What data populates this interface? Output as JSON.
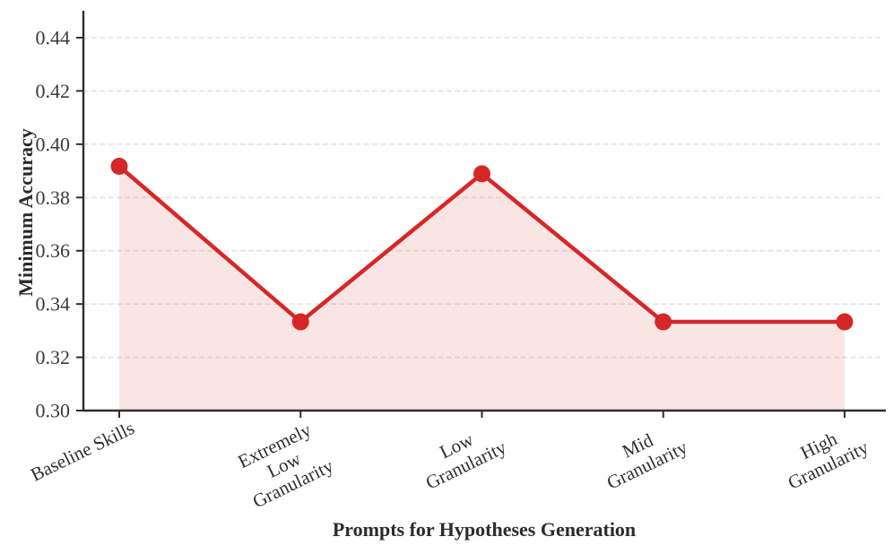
{
  "chart_data": {
    "type": "line",
    "title": "",
    "xlabel": "Prompts for Hypotheses Generation",
    "ylabel": "Minimum Accuracy",
    "categories": [
      "Baseline Skills",
      "Extremely\nLow\nGranularity",
      "Low\nGranularity",
      "Mid\nGranularity",
      "High\nGranularity"
    ],
    "values": [
      0.3917,
      0.3333,
      0.3889,
      0.3333,
      0.3333
    ],
    "ylim": [
      0.3,
      0.45
    ],
    "yticks": [
      0.3,
      0.32,
      0.34,
      0.36,
      0.38,
      0.4,
      0.42,
      0.44
    ],
    "grid": "horizontal-dashed",
    "legend": "none",
    "colors": {
      "line": "#d62728",
      "marker": "#d62728",
      "area_fill": "rgba(214,39,40,0.12)",
      "gridline": "#e4e4e4",
      "axis": "#2e2e2e",
      "tick_label": "#3a3a3a"
    }
  }
}
